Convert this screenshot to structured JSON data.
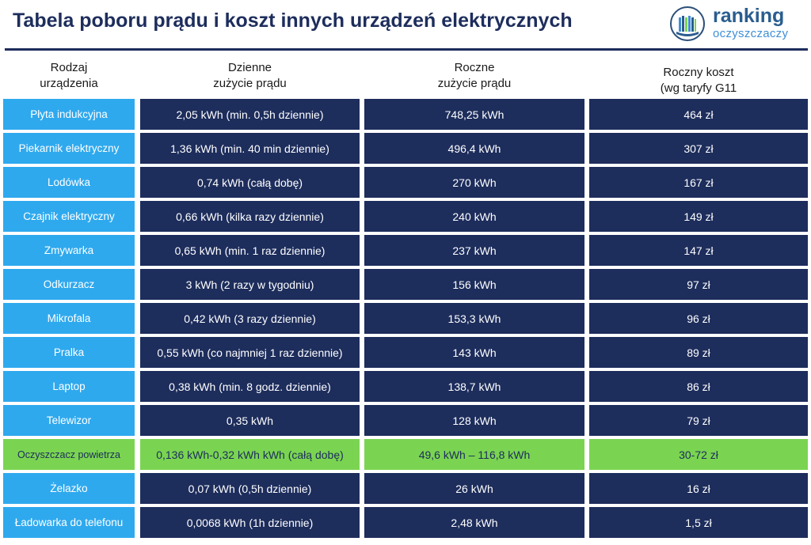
{
  "title": "Tabela poboru prądu i koszt innych urządzeń elektrycznych",
  "logo": {
    "line1": "ranking",
    "line2": "oczyszczaczy",
    "icon": "book-stack-icon",
    "colors": {
      "dark": "#2a5d8f",
      "light": "#3f8fd6",
      "green": "#7ad451"
    }
  },
  "headers": [
    {
      "line1": "Rodzaj",
      "line2": "urządzenia"
    },
    {
      "line1": "Dzienne",
      "line2": "zużycie prądu"
    },
    {
      "line1": "Roczne",
      "line2": "zużycie prądu"
    },
    {
      "line1": "Roczny koszt",
      "line2": "(wg taryfy G11"
    }
  ],
  "colors": {
    "navy": "#1d2d5c",
    "blue": "#2fa9ee",
    "green": "#7ad451"
  },
  "rows": [
    {
      "device": "Płyta indukcyjna",
      "daily": "2,05 kWh (min. 0,5h dziennie)",
      "yearly": "748,25 kWh",
      "cost": "464 zł",
      "highlight": false
    },
    {
      "device": "Piekarnik elektryczny",
      "daily": "1,36 kWh (min. 40 min dziennie)",
      "yearly": "496,4 kWh",
      "cost": "307 zł",
      "highlight": false
    },
    {
      "device": "Lodówka",
      "daily": "0,74 kWh (całą dobę)",
      "yearly": "270 kWh",
      "cost": "167 zł",
      "highlight": false
    },
    {
      "device": "Czajnik elektryczny",
      "daily": "0,66 kWh (kilka razy dziennie)",
      "yearly": "240 kWh",
      "cost": "149 zł",
      "highlight": false
    },
    {
      "device": "Zmywarka",
      "daily": "0,65 kWh (min. 1 raz dziennie)",
      "yearly": "237 kWh",
      "cost": "147 zł",
      "highlight": false
    },
    {
      "device": "Odkurzacz",
      "daily": "3 kWh (2 razy w tygodniu)",
      "yearly": "156 kWh",
      "cost": "97 zł",
      "highlight": false
    },
    {
      "device": "Mikrofala",
      "daily": "0,42 kWh (3 razy dziennie)",
      "yearly": "153,3 kWh",
      "cost": "96 zł",
      "highlight": false
    },
    {
      "device": "Pralka",
      "daily": "0,55 kWh (co najmniej 1 raz dziennie)",
      "yearly": "143 kWh",
      "cost": "89 zł",
      "highlight": false
    },
    {
      "device": "Laptop",
      "daily": "0,38 kWh (min. 8 godz. dziennie)",
      "yearly": "138,7 kWh",
      "cost": "86 zł",
      "highlight": false
    },
    {
      "device": "Telewizor",
      "daily": "0,35 kWh",
      "yearly": "128 kWh",
      "cost": "79 zł",
      "highlight": false
    },
    {
      "device": "Oczyszczacz powietrza",
      "daily": "0,136 kWh-0,32 kWh kWh (całą dobę)",
      "yearly": "49,6 kWh – 116,8 kWh",
      "cost": "30-72 zł",
      "highlight": true
    },
    {
      "device": "Żelazko",
      "daily": "0,07 kWh (0,5h dziennie)",
      "yearly": "26 kWh",
      "cost": "16 zł",
      "highlight": false
    },
    {
      "device": "Ładowarka do telefonu",
      "daily": "0,0068 kWh (1h dziennie)",
      "yearly": "2,48 kWh",
      "cost": "1,5 zł",
      "highlight": false
    }
  ]
}
